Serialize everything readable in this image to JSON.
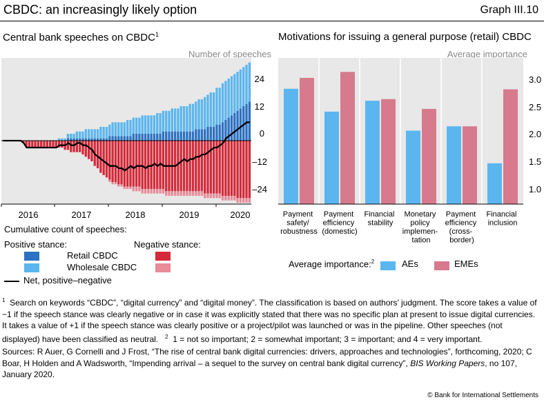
{
  "header": {
    "title": "CBDC: an increasingly likely option",
    "graph_id": "Graph III.10"
  },
  "colors": {
    "retail": "#2b72c4",
    "wholesale": "#5bb6ef",
    "neg_retail": "#d42a3a",
    "neg_wholesale": "#e88c99",
    "bg": "#e8e8e8",
    "ae": "#5bb6ef",
    "eme": "#d77a8e"
  },
  "left": {
    "title": "Central bank speeches on CBDC",
    "title_sup": "1",
    "unit": "Number of speeches",
    "x_ticks": [
      "2016",
      "2017",
      "2018",
      "2019",
      "2020"
    ],
    "y_ticks": [
      "24",
      "12",
      "0",
      "–12",
      "–24"
    ],
    "legend": {
      "heading": "Cumulative count of speeches:",
      "positive_label": "Positive stance:",
      "negative_label": "Negative stance:",
      "retail_label": "Retail CBDC",
      "wholesale_label": "Wholesale CBDC",
      "net_label": "Net, positive–negative"
    }
  },
  "right": {
    "title": "Motivations for issuing a general purpose (retail) CBDC",
    "unit": "Average importance",
    "y_ticks": [
      "3.0",
      "2.5",
      "2.0",
      "1.5",
      "1.0"
    ],
    "categories": [
      [
        "Payment",
        "safety/",
        "robustness"
      ],
      [
        "Payment",
        "efficiency",
        "(domestic)"
      ],
      [
        "Financial",
        "stability"
      ],
      [
        "Monetary",
        "policy",
        "implemen-",
        "tation"
      ],
      [
        "Payment",
        "efficiency",
        "(cross-",
        "border)"
      ],
      [
        "Financial",
        "inclusion"
      ]
    ],
    "legend": {
      "heading": "Average importance:",
      "heading_sup": "2",
      "ae_label": "AEs",
      "eme_label": "EMEs"
    }
  },
  "chart_data": [
    {
      "type": "bar",
      "title": "Central bank speeches on CBDC",
      "ylabel": "Number of speeches",
      "ylim": [
        -30,
        34
      ],
      "x_range": [
        "2015-08",
        "2020-03"
      ],
      "series": [
        {
          "name": "Retail CBDC (positive)",
          "values": [
            0,
            0,
            0,
            0,
            0,
            0,
            0,
            0,
            0,
            0,
            0,
            0,
            0,
            0,
            0,
            0,
            0,
            0,
            0,
            0,
            0,
            0,
            1,
            1,
            1,
            1,
            1,
            1,
            1,
            1,
            1,
            1,
            1,
            1,
            1,
            1,
            2,
            2,
            2,
            2,
            2,
            2,
            2,
            2,
            3,
            3,
            3,
            3,
            3,
            3,
            3,
            3,
            3,
            3,
            4,
            4,
            4,
            4,
            4,
            4,
            4,
            4,
            4,
            4,
            4,
            5,
            5,
            5,
            5,
            6,
            6,
            6,
            7,
            7,
            8,
            9,
            10,
            11,
            12,
            13,
            14,
            15,
            16,
            17
          ]
        },
        {
          "name": "Wholesale CBDC (positive)",
          "values": [
            0,
            0,
            0,
            0,
            0,
            0,
            0,
            0,
            0,
            0,
            0,
            0,
            0,
            0,
            0,
            0,
            0,
            0,
            0,
            1,
            1,
            1,
            2,
            2,
            2,
            3,
            3,
            3,
            4,
            4,
            4,
            4,
            4,
            5,
            5,
            5,
            5,
            6,
            6,
            6,
            6,
            6,
            7,
            7,
            7,
            7,
            7,
            8,
            8,
            8,
            8,
            8,
            9,
            9,
            9,
            9,
            9,
            10,
            10,
            10,
            11,
            11,
            11,
            12,
            12,
            12,
            13,
            13,
            14,
            14,
            15,
            15,
            16,
            16,
            17,
            17,
            17,
            17,
            17,
            17,
            17,
            17,
            17,
            17
          ]
        },
        {
          "name": "Retail CBDC (negative)",
          "values": [
            0,
            0,
            0,
            0,
            0,
            0,
            0,
            -1,
            -3,
            -3,
            -3,
            -3,
            -3,
            -3,
            -3,
            -3,
            -3,
            -3,
            -3,
            -3,
            -3,
            -4,
            -4,
            -5,
            -5,
            -5,
            -5,
            -6,
            -7,
            -8,
            -9,
            -11,
            -12,
            -14,
            -15,
            -16,
            -17,
            -18,
            -18,
            -19,
            -19,
            -20,
            -20,
            -20,
            -20,
            -20,
            -20,
            -21,
            -21,
            -21,
            -21,
            -21,
            -21,
            -21,
            -21,
            -22,
            -22,
            -22,
            -22,
            -22,
            -22,
            -22,
            -22,
            -22,
            -22,
            -22,
            -22,
            -22,
            -23,
            -23,
            -23,
            -23,
            -23,
            -23,
            -24,
            -24,
            -24,
            -24,
            -24,
            -25,
            -25,
            -25,
            -25,
            -25
          ]
        },
        {
          "name": "Wholesale CBDC (negative)",
          "values": [
            0,
            0,
            0,
            0,
            0,
            0,
            0,
            0,
            0,
            0,
            0,
            0,
            0,
            0,
            0,
            0,
            0,
            0,
            0,
            0,
            0,
            0,
            0,
            0,
            0,
            0,
            0,
            0,
            0,
            0,
            0,
            0,
            0,
            0,
            0,
            0,
            -1,
            -1,
            -1,
            -1,
            -1,
            -1,
            -1,
            -1,
            -2,
            -2,
            -2,
            -2,
            -2,
            -2,
            -2,
            -2,
            -2,
            -2,
            -2,
            -2,
            -2,
            -2,
            -2,
            -2,
            -2,
            -2,
            -2,
            -2,
            -2,
            -2,
            -2,
            -2,
            -2,
            -2,
            -2,
            -2,
            -2,
            -2,
            -2,
            -2,
            -2,
            -2,
            -2,
            -2,
            -2,
            -2,
            -2,
            -2
          ]
        },
        {
          "name": "Net, positive–negative",
          "type": "line",
          "values": [
            0,
            0,
            0,
            0,
            0,
            0,
            0,
            -1,
            -3,
            -3,
            -3,
            -3,
            -3,
            -3,
            -3,
            -3,
            -3,
            -3,
            -3,
            -2,
            -2,
            -2,
            -1,
            -2,
            -2,
            -1,
            -1,
            -2,
            -2,
            -3,
            -4,
            -6,
            -7,
            -8,
            -9,
            -10,
            -11,
            -11,
            -11,
            -12,
            -12,
            -13,
            -12,
            -11,
            -12,
            -11,
            -11,
            -11,
            -12,
            -11,
            -11,
            -10,
            -11,
            -10,
            -11,
            -11,
            -11,
            -11,
            -11,
            -10,
            -9,
            -8,
            -9,
            -8,
            -8,
            -7,
            -7,
            -6,
            -6,
            -5,
            -4,
            -3,
            -3,
            -2,
            -1,
            1,
            2,
            3,
            4,
            5,
            6,
            7,
            8,
            8
          ]
        }
      ]
    },
    {
      "type": "bar",
      "title": "Motivations for issuing a general purpose (retail) CBDC",
      "ylabel": "Average importance",
      "ylim": [
        0.85,
        3.4
      ],
      "categories": [
        "Payment safety/robustness",
        "Payment efficiency (domestic)",
        "Financial stability",
        "Monetary policy implementation",
        "Payment efficiency (cross-border)",
        "Financial inclusion"
      ],
      "series": [
        {
          "name": "AEs",
          "values": [
            2.97,
            2.55,
            2.75,
            2.2,
            2.28,
            1.6
          ]
        },
        {
          "name": "EMEs",
          "values": [
            3.17,
            3.28,
            2.78,
            2.6,
            2.28,
            2.96
          ]
        }
      ]
    }
  ],
  "footnotes": {
    "note1_marker": "1",
    "note1": "Search on keywords “CBDC”, “digital currency” and “digital money”. The classification is based on authors’ judgment. The score takes a value of −1 if the speech stance was clearly negative or in case it was explicitly stated that there was no specific plan at present to issue digital currencies. It takes a value of +1 if the speech stance was clearly positive or a project/pilot was launched or was in the pipeline. Other speeches (not displayed) have been classified as neutral.",
    "note2_marker": "2",
    "note2": "1 = not so important; 2 = somewhat important; 3 = important; and 4 = very important.",
    "sources_lead": "Sources: R Auer, G Cornelli and J Frost, “The rise of central bank digital currencies: drivers, approaches and technologies”, forthcoming, 2020; C Boar, H Holden and A Wadsworth, “Impending arrival – a sequel to the survey on central bank digital currency”,",
    "sources_journal": "BIS Working Papers",
    "sources_tail": ", no 107, January 2020.",
    "copyright": "© Bank for International Settlements"
  }
}
